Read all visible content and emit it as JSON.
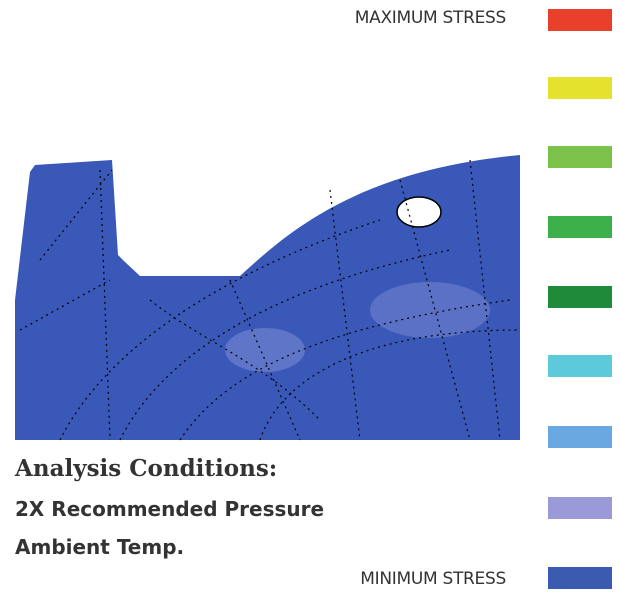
{
  "legend": {
    "max_label": "MAXIMUM STRESS",
    "min_label": "MINIMUM STRESS"
  },
  "conditions": {
    "heading": "Analysis Conditions:",
    "lines": [
      "2X Recommended Pressure",
      "Ambient Temp."
    ]
  }
}
